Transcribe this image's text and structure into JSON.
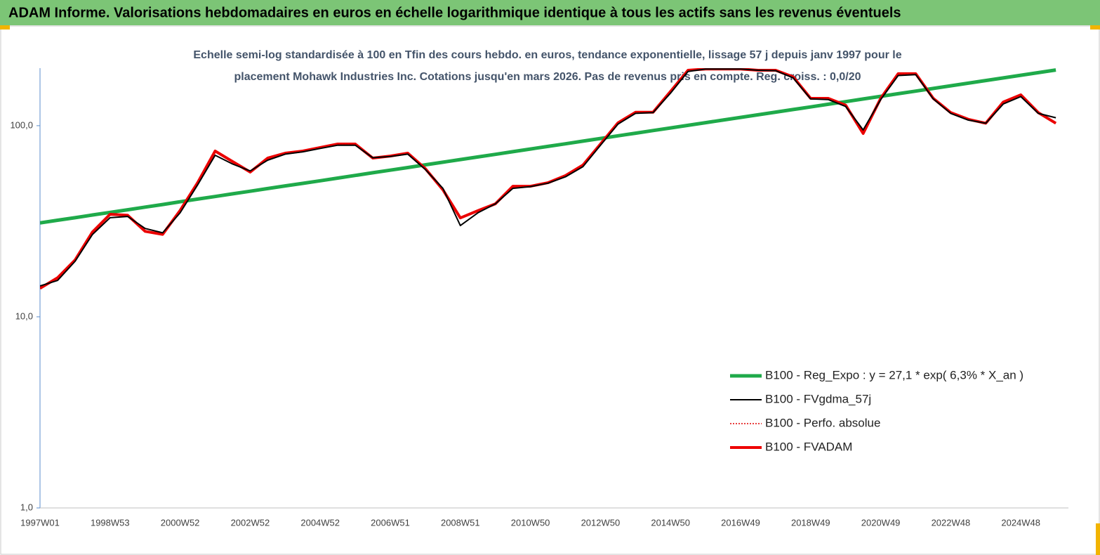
{
  "chart_data": {
    "type": "line",
    "title": "ADAM Informe. Valorisations hebdomadaires en euros en échelle logarithmique identique à tous les actifs sans les revenus éventuels",
    "subtitle": [
      "Echelle semi-log standardisée à 100 en Tfin des cours hebdo. en euros, tendance exponentielle, lissage 57 j depuis janv 1997 pour le",
      "placement Mohawk Industries Inc. Cotations jusqu'en mars 2026. Pas de revenus pris en compte. Reg. croiss. : 0,0/20"
    ],
    "log_scale": true,
    "ylim": [
      1,
      200
    ],
    "yticks": [
      {
        "value": 1,
        "label": "1,0"
      },
      {
        "value": 10,
        "label": "10,0"
      },
      {
        "value": 100,
        "label": "100,0"
      }
    ],
    "grid": false,
    "legend": "lower right",
    "categories": [
      "1997W01",
      null,
      null,
      null,
      "1998W53",
      null,
      null,
      null,
      "2000W52",
      null,
      null,
      null,
      "2002W52",
      null,
      null,
      null,
      "2004W52",
      null,
      null,
      null,
      "2006W51",
      null,
      null,
      null,
      "2008W51",
      null,
      null,
      null,
      "2010W50",
      null,
      null,
      null,
      "2012W50",
      null,
      null,
      null,
      "2014W50",
      null,
      null,
      null,
      "2016W49",
      null,
      null,
      null,
      "2018W49",
      null,
      null,
      null,
      "2020W49",
      null,
      null,
      null,
      "2022W48",
      null,
      null,
      null,
      "2024W48",
      null,
      null
    ],
    "series": [
      {
        "name": "B100 - Reg_Expo : y = 27,1 * exp( 6,3% * X_an )",
        "color": "#1faa4a",
        "width": 5,
        "dash": "solid",
        "values": [
          31,
          32.0,
          33.0,
          34.1,
          35.2,
          36.3,
          37.5,
          38.7,
          40.0,
          41.3,
          42.6,
          44.0,
          45.4,
          46.9,
          48.4,
          49.9,
          51.5,
          53.2,
          54.9,
          56.7,
          58.5,
          60.4,
          62.4,
          64.4,
          66.5,
          68.6,
          70.8,
          73.1,
          75.5,
          77.9,
          80.4,
          83.0,
          85.7,
          88.5,
          91.3,
          94.3,
          97.3,
          100.4,
          103.7,
          107.0,
          110.5,
          114.0,
          117.7,
          121.5,
          125.4,
          129.5,
          133.6,
          137.9,
          142.4,
          147.0,
          151.7,
          156.6,
          161.7,
          166.9,
          172.3,
          177.8,
          183.6,
          189.5,
          195.6
        ]
      },
      {
        "name": "B100 - FVgdma_57j",
        "color": "#000000",
        "width": 2,
        "dash": "solid",
        "values": [
          14.5,
          15.5,
          19.5,
          27,
          33,
          33.5,
          29,
          27.5,
          35,
          49,
          70,
          63,
          58,
          66,
          71,
          73,
          76,
          79,
          79,
          68,
          69,
          71,
          59,
          47,
          30,
          35,
          39,
          47,
          48,
          50,
          54,
          61,
          79,
          102,
          116,
          117,
          148,
          192,
          198,
          198,
          198,
          195,
          194,
          178,
          138,
          137,
          126,
          95,
          137,
          183,
          185,
          138,
          116,
          107,
          103,
          130,
          142,
          116,
          110
        ]
      },
      {
        "name": "B100 - Perfo. absolue",
        "color": "#e00000",
        "width": 1.5,
        "dash": "dotted",
        "values": [
          14.1,
          16,
          19.8,
          27.8,
          34.4,
          34,
          28,
          27,
          36,
          50.3,
          73.7,
          64.9,
          57.2,
          67.7,
          71.8,
          73.7,
          76.9,
          80.2,
          80.2,
          67.7,
          69.4,
          71.8,
          59.6,
          46.2,
          32.9,
          35.9,
          39.0,
          48.2,
          48.2,
          50.3,
          54.8,
          62.2,
          80.2,
          103.5,
          117.5,
          117.5,
          151,
          195,
          198,
          198,
          198,
          195,
          195,
          180,
          139,
          139,
          128,
          91,
          139,
          187,
          187,
          139,
          117,
          108,
          103,
          133,
          145,
          117,
          103
        ]
      },
      {
        "name": "B100 - FVADAM",
        "color": "#ee0000",
        "width": 4,
        "dash": "solid",
        "values": [
          14.1,
          16,
          19.8,
          27.8,
          34.4,
          34,
          28,
          27,
          36,
          50.3,
          73.7,
          64.9,
          57.2,
          67.7,
          71.8,
          73.7,
          76.9,
          80.2,
          80.2,
          67.7,
          69.4,
          71.8,
          59.6,
          46.2,
          32.9,
          35.9,
          39.0,
          48.2,
          48.2,
          50.3,
          54.8,
          62.2,
          80.2,
          103.5,
          117.5,
          117.5,
          151,
          195,
          198,
          198,
          198,
          195,
          195,
          180,
          139,
          139,
          128,
          91,
          139,
          187,
          187,
          139,
          117,
          108,
          103,
          133,
          145,
          117,
          103
        ]
      }
    ]
  }
}
